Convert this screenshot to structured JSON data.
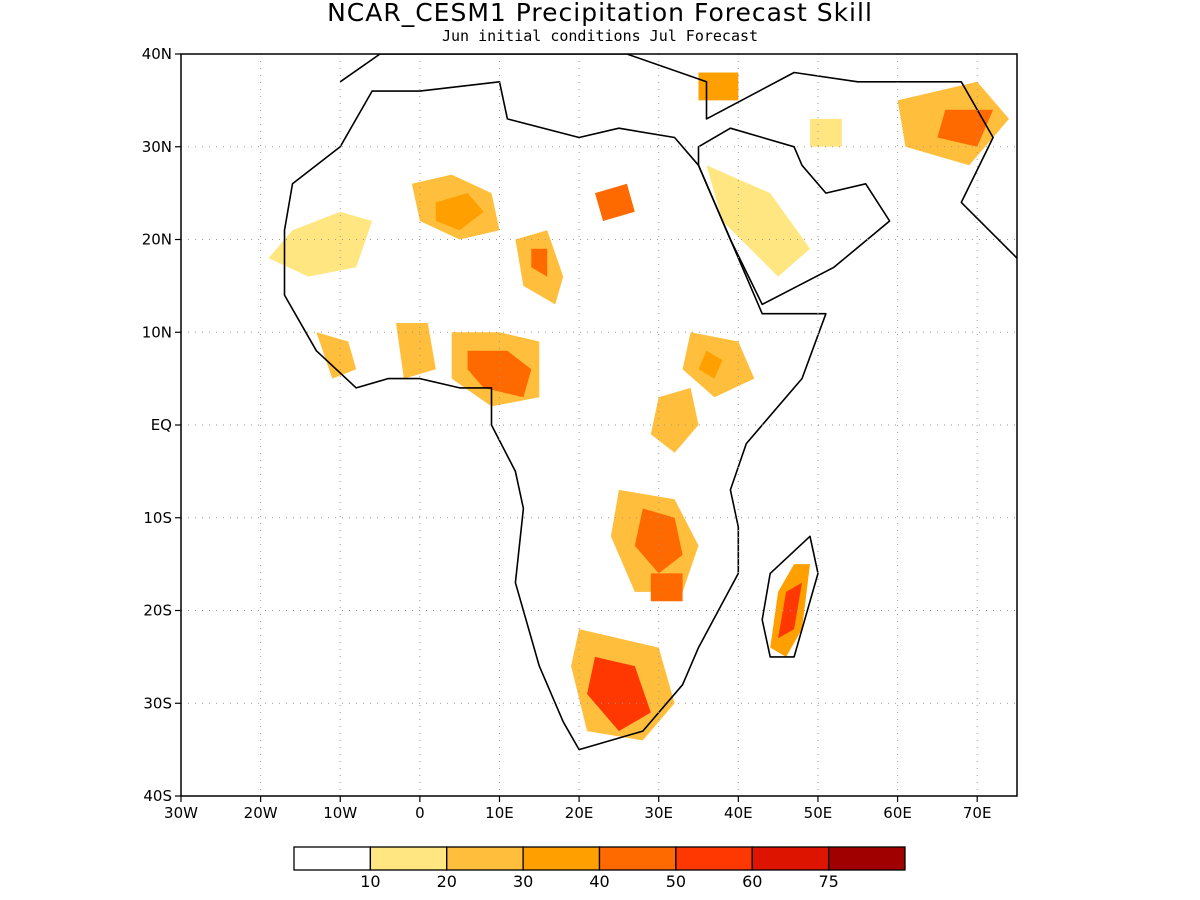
{
  "map": {
    "title": "NCAR_CESM1 Precipitation Forecast Skill",
    "subtitle": "Jun initial conditions  Jul Forecast",
    "region": "Africa",
    "extent": {
      "lon": [
        -30,
        75
      ],
      "lat": [
        -40,
        40
      ]
    },
    "lon_ticks": [
      {
        "v": -30,
        "label": "30W"
      },
      {
        "v": -20,
        "label": "20W"
      },
      {
        "v": -10,
        "label": "10W"
      },
      {
        "v": 0,
        "label": "0"
      },
      {
        "v": 10,
        "label": "10E"
      },
      {
        "v": 20,
        "label": "20E"
      },
      {
        "v": 30,
        "label": "30E"
      },
      {
        "v": 40,
        "label": "40E"
      },
      {
        "v": 50,
        "label": "50E"
      },
      {
        "v": 60,
        "label": "60E"
      },
      {
        "v": 70,
        "label": "70E"
      }
    ],
    "lat_ticks": [
      {
        "v": 40,
        "label": "40N"
      },
      {
        "v": 30,
        "label": "30N"
      },
      {
        "v": 20,
        "label": "20N"
      },
      {
        "v": 10,
        "label": "10N"
      },
      {
        "v": 0,
        "label": "EQ"
      },
      {
        "v": -10,
        "label": "10S"
      },
      {
        "v": -20,
        "label": "20S"
      },
      {
        "v": -30,
        "label": "30S"
      },
      {
        "v": -40,
        "label": "40S"
      }
    ],
    "grid": true,
    "colorbar": {
      "colors": [
        "#ffffff",
        "#ffe680",
        "#ffbe3c",
        "#ffa000",
        "#ff6a00",
        "#ff3700",
        "#dc1400",
        "#a00000"
      ],
      "labels": [
        "10",
        "20",
        "30",
        "40",
        "50",
        "60",
        "75"
      ]
    }
  },
  "regions": [
    {
      "name": "sahel-west",
      "level": 1,
      "pts": [
        [
          -19,
          18
        ],
        [
          -16,
          21
        ],
        [
          -10,
          23
        ],
        [
          -6,
          22
        ],
        [
          -8,
          17
        ],
        [
          -14,
          16
        ]
      ]
    },
    {
      "name": "sahara-central",
      "level": 2,
      "pts": [
        [
          -1,
          26
        ],
        [
          4,
          27
        ],
        [
          9,
          25
        ],
        [
          10,
          21
        ],
        [
          5,
          20
        ],
        [
          0,
          22
        ]
      ]
    },
    {
      "name": "sahara-central-core",
      "level": 3,
      "pts": [
        [
          2,
          24
        ],
        [
          6,
          25
        ],
        [
          8,
          23
        ],
        [
          5,
          21
        ],
        [
          2,
          22
        ]
      ]
    },
    {
      "name": "libya-east",
      "level": 4,
      "pts": [
        [
          22,
          25
        ],
        [
          26,
          26
        ],
        [
          27,
          23
        ],
        [
          23,
          22
        ]
      ]
    },
    {
      "name": "chad-north",
      "level": 2,
      "pts": [
        [
          12,
          20
        ],
        [
          16,
          21
        ],
        [
          18,
          16
        ],
        [
          17,
          13
        ],
        [
          13,
          15
        ]
      ]
    },
    {
      "name": "chad-north-core",
      "level": 4,
      "pts": [
        [
          14,
          19
        ],
        [
          16,
          19
        ],
        [
          16,
          16
        ],
        [
          14,
          17
        ]
      ]
    },
    {
      "name": "nigeria-cameroon",
      "level": 2,
      "pts": [
        [
          4,
          10
        ],
        [
          10,
          10
        ],
        [
          15,
          9
        ],
        [
          15,
          3
        ],
        [
          9,
          2
        ],
        [
          4,
          5
        ]
      ]
    },
    {
      "name": "nigeria-cameroon-core",
      "level": 4,
      "pts": [
        [
          6,
          8
        ],
        [
          11,
          8
        ],
        [
          14,
          6
        ],
        [
          13,
          3
        ],
        [
          8,
          4
        ],
        [
          6,
          6
        ]
      ]
    },
    {
      "name": "ghana",
      "level": 2,
      "pts": [
        [
          -3,
          11
        ],
        [
          1,
          11
        ],
        [
          2,
          6
        ],
        [
          -2,
          5
        ]
      ]
    },
    {
      "name": "guinea-coast",
      "level": 2,
      "pts": [
        [
          -13,
          10
        ],
        [
          -9,
          9
        ],
        [
          -8,
          6
        ],
        [
          -11,
          5
        ]
      ]
    },
    {
      "name": "ethiopia-south",
      "level": 2,
      "pts": [
        [
          34,
          10
        ],
        [
          40,
          9
        ],
        [
          42,
          5
        ],
        [
          37,
          3
        ],
        [
          33,
          6
        ]
      ]
    },
    {
      "name": "ethiopia-core",
      "level": 3,
      "pts": [
        [
          36,
          8
        ],
        [
          38,
          7
        ],
        [
          37,
          5
        ],
        [
          35,
          6
        ]
      ]
    },
    {
      "name": "arabia",
      "level": 1,
      "pts": [
        [
          36,
          28
        ],
        [
          44,
          25
        ],
        [
          49,
          19
        ],
        [
          45,
          16
        ],
        [
          38,
          22
        ]
      ]
    },
    {
      "name": "iraq-iran",
      "level": 1,
      "pts": [
        [
          49,
          33
        ],
        [
          53,
          33
        ],
        [
          53,
          30
        ],
        [
          49,
          30
        ]
      ]
    },
    {
      "name": "afghanistan",
      "level": 2,
      "pts": [
        [
          60,
          35
        ],
        [
          70,
          37
        ],
        [
          74,
          33
        ],
        [
          69,
          28
        ],
        [
          61,
          30
        ]
      ]
    },
    {
      "name": "afghanistan-core",
      "level": 4,
      "pts": [
        [
          66,
          34
        ],
        [
          72,
          34
        ],
        [
          70,
          30
        ],
        [
          65,
          31
        ]
      ]
    },
    {
      "name": "zambia-malawi",
      "level": 2,
      "pts": [
        [
          25,
          -7
        ],
        [
          32,
          -8
        ],
        [
          35,
          -13
        ],
        [
          33,
          -18
        ],
        [
          27,
          -18
        ],
        [
          24,
          -12
        ]
      ]
    },
    {
      "name": "zambia-core",
      "level": 4,
      "pts": [
        [
          28,
          -9
        ],
        [
          32,
          -10
        ],
        [
          33,
          -14
        ],
        [
          30,
          -16
        ],
        [
          27,
          -13
        ]
      ]
    },
    {
      "name": "mozambique",
      "level": 4,
      "pts": [
        [
          29,
          -16
        ],
        [
          33,
          -16
        ],
        [
          33,
          -19
        ],
        [
          29,
          -19
        ]
      ]
    },
    {
      "name": "south-africa",
      "level": 2,
      "pts": [
        [
          20,
          -22
        ],
        [
          30,
          -24
        ],
        [
          32,
          -30
        ],
        [
          28,
          -34
        ],
        [
          21,
          -33
        ],
        [
          19,
          -26
        ]
      ]
    },
    {
      "name": "south-africa-core",
      "level": 5,
      "pts": [
        [
          22,
          -25
        ],
        [
          27,
          -26
        ],
        [
          29,
          -31
        ],
        [
          25,
          -33
        ],
        [
          21,
          -29
        ]
      ]
    },
    {
      "name": "madagascar",
      "level": 3,
      "pts": [
        [
          47,
          -15
        ],
        [
          49,
          -15
        ],
        [
          48,
          -22
        ],
        [
          46,
          -25
        ],
        [
          44,
          -24
        ],
        [
          45,
          -18
        ]
      ]
    },
    {
      "name": "madagascar-core",
      "level": 5,
      "pts": [
        [
          46,
          -18
        ],
        [
          48,
          -17
        ],
        [
          47,
          -22
        ],
        [
          45,
          -23
        ]
      ]
    },
    {
      "name": "uganda-kenya",
      "level": 2,
      "pts": [
        [
          30,
          3
        ],
        [
          34,
          4
        ],
        [
          35,
          0
        ],
        [
          32,
          -3
        ],
        [
          29,
          -1
        ]
      ]
    },
    {
      "name": "turkey-syria",
      "level": 3,
      "pts": [
        [
          35,
          38
        ],
        [
          40,
          38
        ],
        [
          40,
          35
        ],
        [
          35,
          35
        ]
      ]
    }
  ]
}
